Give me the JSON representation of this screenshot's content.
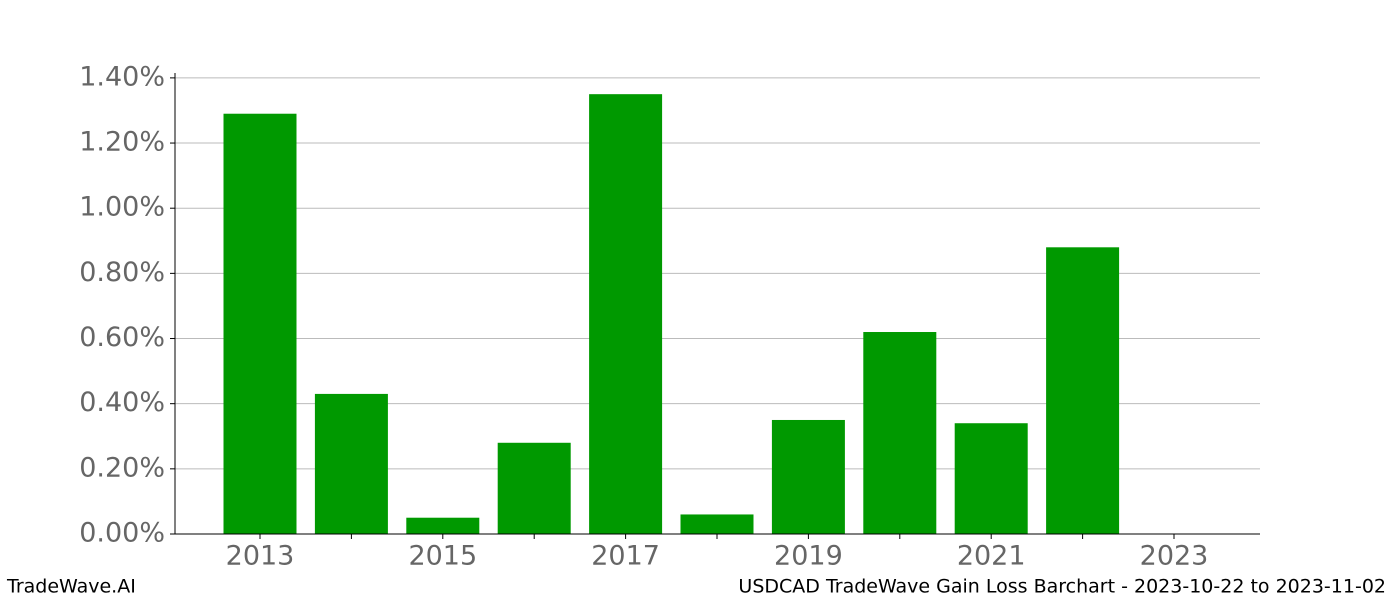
{
  "chart_data": {
    "type": "bar",
    "title": "USDCAD TradeWave Gain Loss Barchart - 2023-10-22 to 2023-11-02",
    "brand": "TradeWave.AI",
    "categories": [
      "2013",
      null,
      "2015",
      null,
      "2017",
      null,
      "2019",
      null,
      "2021",
      null,
      "2023"
    ],
    "values": [
      1.29,
      0.43,
      0.05,
      0.28,
      1.35,
      0.06,
      0.35,
      0.62,
      0.34,
      0.88,
      null
    ],
    "color": "#009900",
    "ylim": [
      0,
      1.415
    ],
    "yticks": [
      {
        "value": 0,
        "label": "0.00%"
      },
      {
        "value": 0.2,
        "label": "0.20%"
      },
      {
        "value": 0.4,
        "label": "0.40%"
      },
      {
        "value": 0.6,
        "label": "0.60%"
      },
      {
        "value": 0.8,
        "label": "0.80%"
      },
      {
        "value": 1.0,
        "label": "1.00%"
      },
      {
        "value": 1.2,
        "label": "1.20%"
      },
      {
        "value": 1.4,
        "label": "1.40%"
      }
    ],
    "grid": true
  }
}
